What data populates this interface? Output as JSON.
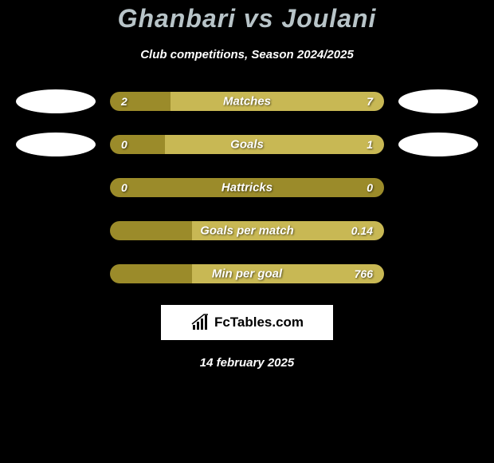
{
  "header": {
    "title": "Ghanbari vs Joulani",
    "subtitle": "Club competitions, Season 2024/2025"
  },
  "colors": {
    "background": "#000000",
    "left_bar": "#9b8b2a",
    "right_bar": "#c8b854",
    "title_color": "#b8c4c8",
    "text": "#ffffff",
    "ellipse": "#ffffff"
  },
  "rows": [
    {
      "id": "matches",
      "label": "Matches",
      "left_value": "2",
      "right_value": "7",
      "left_pct": 22,
      "show_ellipses": true,
      "left_color": "#9b8b2a",
      "right_color": "#c8b854"
    },
    {
      "id": "goals",
      "label": "Goals",
      "left_value": "0",
      "right_value": "1",
      "left_pct": 20,
      "show_ellipses": true,
      "left_color": "#9b8b2a",
      "right_color": "#c8b854"
    },
    {
      "id": "hattricks",
      "label": "Hattricks",
      "left_value": "0",
      "right_value": "0",
      "left_pct": 50,
      "show_ellipses": false,
      "left_color": "#9b8b2a",
      "right_color": "#9b8b2a"
    },
    {
      "id": "goals-per-match",
      "label": "Goals per match",
      "left_value": "",
      "right_value": "0.14",
      "left_pct": 30,
      "show_ellipses": false,
      "left_color": "#9b8b2a",
      "right_color": "#c8b854"
    },
    {
      "id": "min-per-goal",
      "label": "Min per goal",
      "left_value": "",
      "right_value": "766",
      "left_pct": 30,
      "show_ellipses": false,
      "left_color": "#9b8b2a",
      "right_color": "#c8b854"
    }
  ],
  "logo": {
    "text": "FcTables.com",
    "icon": "chart-icon"
  },
  "footer": {
    "date": "14 february 2025"
  }
}
